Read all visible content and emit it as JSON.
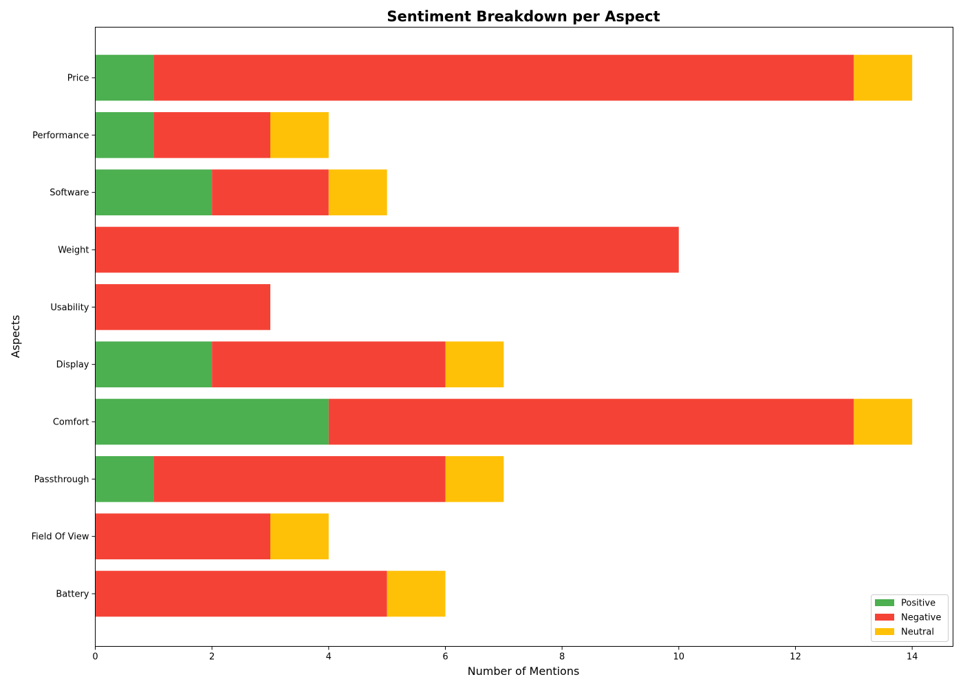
{
  "chart_data": {
    "type": "bar",
    "orientation": "horizontal",
    "stacked": true,
    "title": "Sentiment Breakdown per Aspect",
    "xlabel": "Number of Mentions",
    "ylabel": "Aspects",
    "xlim": [
      0,
      14.7
    ],
    "xticks": [
      0,
      2,
      4,
      6,
      8,
      10,
      12,
      14
    ],
    "categories": [
      "Battery",
      "Field Of View",
      "Passthrough",
      "Comfort",
      "Display",
      "Usability",
      "Weight",
      "Software",
      "Performance",
      "Price"
    ],
    "series": [
      {
        "name": "Positive",
        "color": "#4caf50",
        "values": [
          0,
          0,
          1,
          4,
          2,
          0,
          0,
          2,
          1,
          1
        ]
      },
      {
        "name": "Negative",
        "color": "#f44336",
        "values": [
          5,
          3,
          5,
          9,
          4,
          3,
          10,
          2,
          2,
          12
        ]
      },
      {
        "name": "Neutral",
        "color": "#ffc107",
        "values": [
          1,
          1,
          1,
          1,
          1,
          0,
          0,
          1,
          1,
          1
        ]
      }
    ],
    "legend": {
      "placement": "lower-right"
    },
    "grid": false
  }
}
